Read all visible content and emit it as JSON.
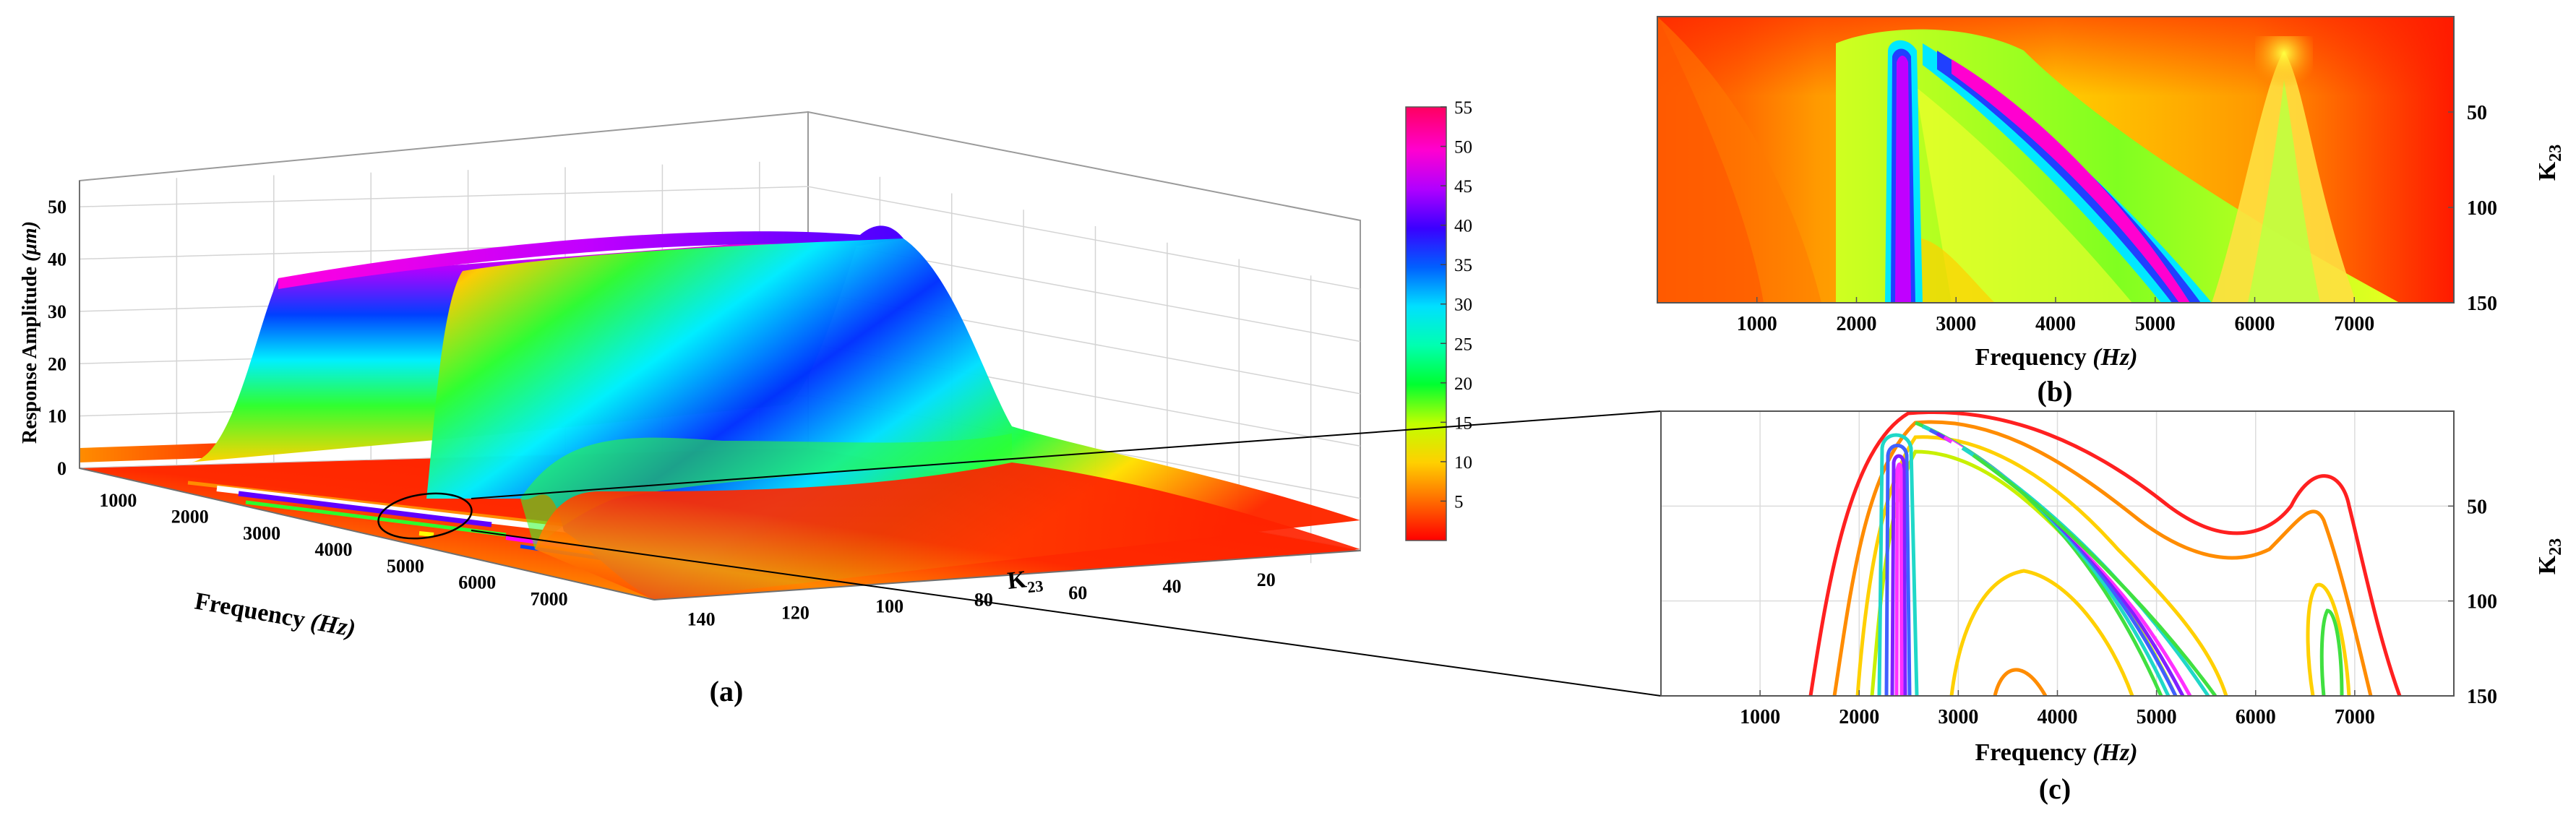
{
  "chart_data": [
    {
      "panel": "(a)",
      "type": "surface3d",
      "xlabel": "Frequency",
      "xlabel_unit": "(Hz)",
      "ylabel": "K",
      "ylabel_sub": "23",
      "zlabel": "Response Amplitude",
      "zlabel_unit": "(μm)",
      "x_ticks": [
        "1000",
        "2000",
        "3000",
        "4000",
        "5000",
        "6000",
        "7000"
      ],
      "y_ticks": [
        "140",
        "120",
        "100",
        "80",
        "60",
        "40",
        "20"
      ],
      "z_ticks": [
        "0",
        "10",
        "20",
        "30",
        "40",
        "50"
      ],
      "xlim": [
        0,
        8000
      ],
      "ylim": [
        0,
        150
      ],
      "zlim": [
        0,
        55
      ],
      "colormap": [
        "#ff0000",
        "#ff7f00",
        "#ffff00",
        "#00ff00",
        "#00ffff",
        "#0000ff",
        "#8b00ff",
        "#ff00ff",
        "#ff0066"
      ],
      "colorbar_ticks": [
        "5",
        "10",
        "15",
        "20",
        "25",
        "30",
        "35",
        "40",
        "45",
        "50",
        "55"
      ],
      "colorbar_range": [
        0,
        55
      ],
      "ridges": [
        {
          "frequency": 2600,
          "peak_amplitude": 38
        },
        {
          "frequency_at_K23_0": 2800,
          "frequency_at_K23_150": 5000,
          "peak_amplitude": 52
        }
      ]
    },
    {
      "panel": "(b)",
      "type": "heatmap",
      "xlabel": "Frequency",
      "xlabel_unit": "(Hz)",
      "ylabel": "K",
      "ylabel_sub": "23",
      "x_ticks": [
        "1000",
        "2000",
        "3000",
        "4000",
        "5000",
        "6000",
        "7000"
      ],
      "y_ticks": [
        "50",
        "100",
        "150"
      ],
      "xlim": [
        0,
        8000
      ],
      "ylim": [
        0,
        150
      ]
    },
    {
      "panel": "(c)",
      "type": "contour",
      "xlabel": "Frequency",
      "xlabel_unit": "(Hz)",
      "ylabel": "K",
      "ylabel_sub": "23",
      "x_ticks": [
        "1000",
        "2000",
        "3000",
        "4000",
        "5000",
        "6000",
        "7000"
      ],
      "y_ticks": [
        "50",
        "100",
        "150"
      ],
      "xlim": [
        0,
        8000
      ],
      "ylim": [
        0,
        150
      ],
      "contour_colors": [
        "#ff2020",
        "#ff8c00",
        "#ffd000",
        "#c8f000",
        "#40e040",
        "#20d8c8",
        "#4060ff",
        "#8020ff",
        "#ff30ff"
      ]
    }
  ]
}
